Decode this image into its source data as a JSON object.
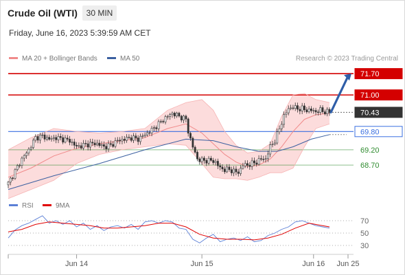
{
  "header": {
    "title": "Crude Oil (WTI)",
    "timeframe": "30 MIN",
    "datetime": "Friday, June 16, 2023 5:39:59 AM CET",
    "credit": "Research © 2023 Trading Central"
  },
  "legend": [
    {
      "label": "MA 20 + Bollinger Bands",
      "color": "#f08a8a"
    },
    {
      "label": "MA 50",
      "color": "#3a5fa0"
    }
  ],
  "rsi_legend": [
    {
      "label": "RSI",
      "color": "#5b7fd6"
    },
    {
      "label": "9MA",
      "color": "#e00000"
    }
  ],
  "colors": {
    "resistance": "#d40000",
    "pivot": "#3a6fe0",
    "support": "#2e8b2e",
    "last": "#333333",
    "arrow": "#2f5ea8",
    "candle": "#333333",
    "band": "#fbd6d6"
  },
  "chart_data": [
    {
      "type": "candlestick",
      "title": "Crude Oil (WTI)",
      "timeframe": "30 MIN",
      "ylim": [
        67.8,
        71.95
      ],
      "x_ticks": [
        "Jun 14",
        "Jun 15",
        "Jun 16",
        "Jun 25"
      ],
      "levels": [
        {
          "value": 71.7,
          "label": "71.70",
          "kind": "resistance"
        },
        {
          "value": 71.0,
          "label": "71.00",
          "kind": "resistance"
        },
        {
          "value": 70.43,
          "label": "70.43",
          "kind": "last"
        },
        {
          "value": 69.8,
          "label": "69.80",
          "kind": "pivot"
        },
        {
          "value": 69.2,
          "label": "69.20",
          "kind": "support"
        },
        {
          "value": 68.7,
          "label": "68.70",
          "kind": "support"
        }
      ],
      "close_path": [
        [
          0,
          68.1
        ],
        [
          3,
          68.5
        ],
        [
          6,
          68.9
        ],
        [
          9,
          69.2
        ],
        [
          12,
          69.6
        ],
        [
          15,
          69.65
        ],
        [
          18,
          69.55
        ],
        [
          21,
          69.6
        ],
        [
          24,
          69.55
        ],
        [
          27,
          69.5
        ],
        [
          30,
          69.3
        ],
        [
          33,
          69.35
        ],
        [
          36,
          69.4
        ],
        [
          39,
          69.4
        ],
        [
          42,
          69.3
        ],
        [
          45,
          69.35
        ],
        [
          48,
          69.5
        ],
        [
          51,
          69.55
        ],
        [
          54,
          69.6
        ],
        [
          57,
          69.55
        ],
        [
          60,
          69.7
        ],
        [
          63,
          69.85
        ],
        [
          66,
          70.05
        ],
        [
          69,
          70.25
        ],
        [
          72,
          70.4
        ],
        [
          75,
          70.3
        ],
        [
          78,
          70.2
        ],
        [
          79,
          69.8
        ],
        [
          81,
          69.3
        ],
        [
          83,
          68.9
        ],
        [
          85,
          68.85
        ],
        [
          87,
          68.85
        ],
        [
          89,
          68.85
        ],
        [
          91,
          68.8
        ],
        [
          93,
          68.6
        ],
        [
          95,
          68.55
        ],
        [
          97,
          68.55
        ],
        [
          99,
          68.5
        ],
        [
          101,
          68.45
        ],
        [
          103,
          68.7
        ],
        [
          105,
          68.7
        ],
        [
          107,
          68.75
        ],
        [
          109,
          68.8
        ],
        [
          111,
          68.9
        ],
        [
          113,
          68.9
        ],
        [
          115,
          69.3
        ],
        [
          117,
          69.5
        ],
        [
          119,
          69.9
        ],
        [
          121,
          70.3
        ],
        [
          123,
          70.55
        ],
        [
          125,
          70.6
        ],
        [
          127,
          70.55
        ],
        [
          129,
          70.55
        ],
        [
          131,
          70.5
        ],
        [
          133,
          70.5
        ],
        [
          135,
          70.45
        ],
        [
          137,
          70.5
        ],
        [
          139,
          70.45
        ],
        [
          141,
          70.43
        ]
      ],
      "ma20": [
        [
          0,
          68.3
        ],
        [
          10,
          68.6
        ],
        [
          20,
          69.0
        ],
        [
          30,
          69.25
        ],
        [
          40,
          69.4
        ],
        [
          50,
          69.5
        ],
        [
          60,
          69.6
        ],
        [
          70,
          69.9
        ],
        [
          78,
          70.05
        ],
        [
          85,
          69.75
        ],
        [
          90,
          69.4
        ],
        [
          95,
          69.05
        ],
        [
          100,
          68.8
        ],
        [
          105,
          68.65
        ],
        [
          110,
          68.7
        ],
        [
          115,
          68.9
        ],
        [
          120,
          69.3
        ],
        [
          125,
          69.8
        ],
        [
          130,
          70.2
        ],
        [
          135,
          70.35
        ],
        [
          141,
          70.4
        ]
      ],
      "bb_upper": [
        [
          0,
          69.2
        ],
        [
          10,
          69.6
        ],
        [
          20,
          69.9
        ],
        [
          30,
          69.8
        ],
        [
          40,
          69.75
        ],
        [
          50,
          69.8
        ],
        [
          60,
          69.9
        ],
        [
          70,
          70.5
        ],
        [
          78,
          70.75
        ],
        [
          85,
          70.85
        ],
        [
          90,
          70.5
        ],
        [
          95,
          69.8
        ],
        [
          100,
          69.35
        ],
        [
          105,
          69.1
        ],
        [
          110,
          69.15
        ],
        [
          115,
          69.4
        ],
        [
          120,
          70.3
        ],
        [
          125,
          71.0
        ],
        [
          130,
          71.05
        ],
        [
          135,
          70.85
        ],
        [
          141,
          70.75
        ]
      ],
      "bb_lower": [
        [
          0,
          67.6
        ],
        [
          10,
          67.9
        ],
        [
          20,
          68.2
        ],
        [
          30,
          68.75
        ],
        [
          40,
          69.05
        ],
        [
          50,
          69.2
        ],
        [
          60,
          69.3
        ],
        [
          70,
          69.4
        ],
        [
          78,
          69.35
        ],
        [
          85,
          68.75
        ],
        [
          90,
          68.3
        ],
        [
          95,
          68.25
        ],
        [
          100,
          68.25
        ],
        [
          105,
          68.2
        ],
        [
          110,
          68.3
        ],
        [
          115,
          68.45
        ],
        [
          120,
          68.45
        ],
        [
          125,
          68.6
        ],
        [
          130,
          69.3
        ],
        [
          135,
          69.9
        ],
        [
          141,
          70.05
        ]
      ],
      "ma50": [
        [
          0,
          67.9
        ],
        [
          20,
          68.35
        ],
        [
          40,
          68.75
        ],
        [
          60,
          69.2
        ],
        [
          78,
          69.55
        ],
        [
          90,
          69.5
        ],
        [
          100,
          69.3
        ],
        [
          110,
          69.15
        ],
        [
          118,
          69.15
        ],
        [
          125,
          69.3
        ],
        [
          133,
          69.55
        ],
        [
          141,
          69.7
        ]
      ],
      "forecast_arrow": {
        "from": 70.43,
        "to": 71.7
      },
      "ma50_projection": 69.7
    },
    {
      "type": "line",
      "title": "RSI",
      "ylim": [
        20,
        80
      ],
      "y_ticks": [
        70,
        50,
        30
      ],
      "series": [
        {
          "name": "RSI",
          "values": [
            [
              0,
              42
            ],
            [
              3,
              55
            ],
            [
              6,
              62
            ],
            [
              9,
              66
            ],
            [
              12,
              72
            ],
            [
              15,
              78
            ],
            [
              18,
              66
            ],
            [
              21,
              70
            ],
            [
              24,
              64
            ],
            [
              27,
              70
            ],
            [
              30,
              60
            ],
            [
              33,
              66
            ],
            [
              36,
              56
            ],
            [
              39,
              62
            ],
            [
              42,
              54
            ],
            [
              45,
              60
            ],
            [
              48,
              62
            ],
            [
              51,
              58
            ],
            [
              54,
              64
            ],
            [
              57,
              56
            ],
            [
              60,
              68
            ],
            [
              63,
              70
            ],
            [
              66,
              66
            ],
            [
              69,
              70
            ],
            [
              72,
              68
            ],
            [
              75,
              58
            ],
            [
              78,
              56
            ],
            [
              81,
              40
            ],
            [
              84,
              34
            ],
            [
              87,
              42
            ],
            [
              90,
              48
            ],
            [
              93,
              36
            ],
            [
              96,
              40
            ],
            [
              99,
              42
            ],
            [
              102,
              38
            ],
            [
              105,
              44
            ],
            [
              108,
              36
            ],
            [
              111,
              38
            ],
            [
              114,
              46
            ],
            [
              117,
              50
            ],
            [
              120,
              56
            ],
            [
              123,
              60
            ],
            [
              126,
              68
            ],
            [
              129,
              70
            ],
            [
              132,
              66
            ],
            [
              135,
              62
            ],
            [
              138,
              60
            ],
            [
              141,
              58
            ]
          ]
        },
        {
          "name": "9MA",
          "values": [
            [
              0,
              52
            ],
            [
              6,
              56
            ],
            [
              12,
              64
            ],
            [
              18,
              68
            ],
            [
              24,
              66
            ],
            [
              30,
              64
            ],
            [
              36,
              62
            ],
            [
              42,
              58
            ],
            [
              48,
              58
            ],
            [
              54,
              60
            ],
            [
              60,
              62
            ],
            [
              66,
              66
            ],
            [
              72,
              66
            ],
            [
              78,
              60
            ],
            [
              84,
              48
            ],
            [
              90,
              42
            ],
            [
              96,
              40
            ],
            [
              102,
              40
            ],
            [
              108,
              39
            ],
            [
              114,
              42
            ],
            [
              120,
              48
            ],
            [
              126,
              58
            ],
            [
              132,
              66
            ],
            [
              138,
              62
            ],
            [
              141,
              60
            ]
          ]
        }
      ]
    }
  ]
}
